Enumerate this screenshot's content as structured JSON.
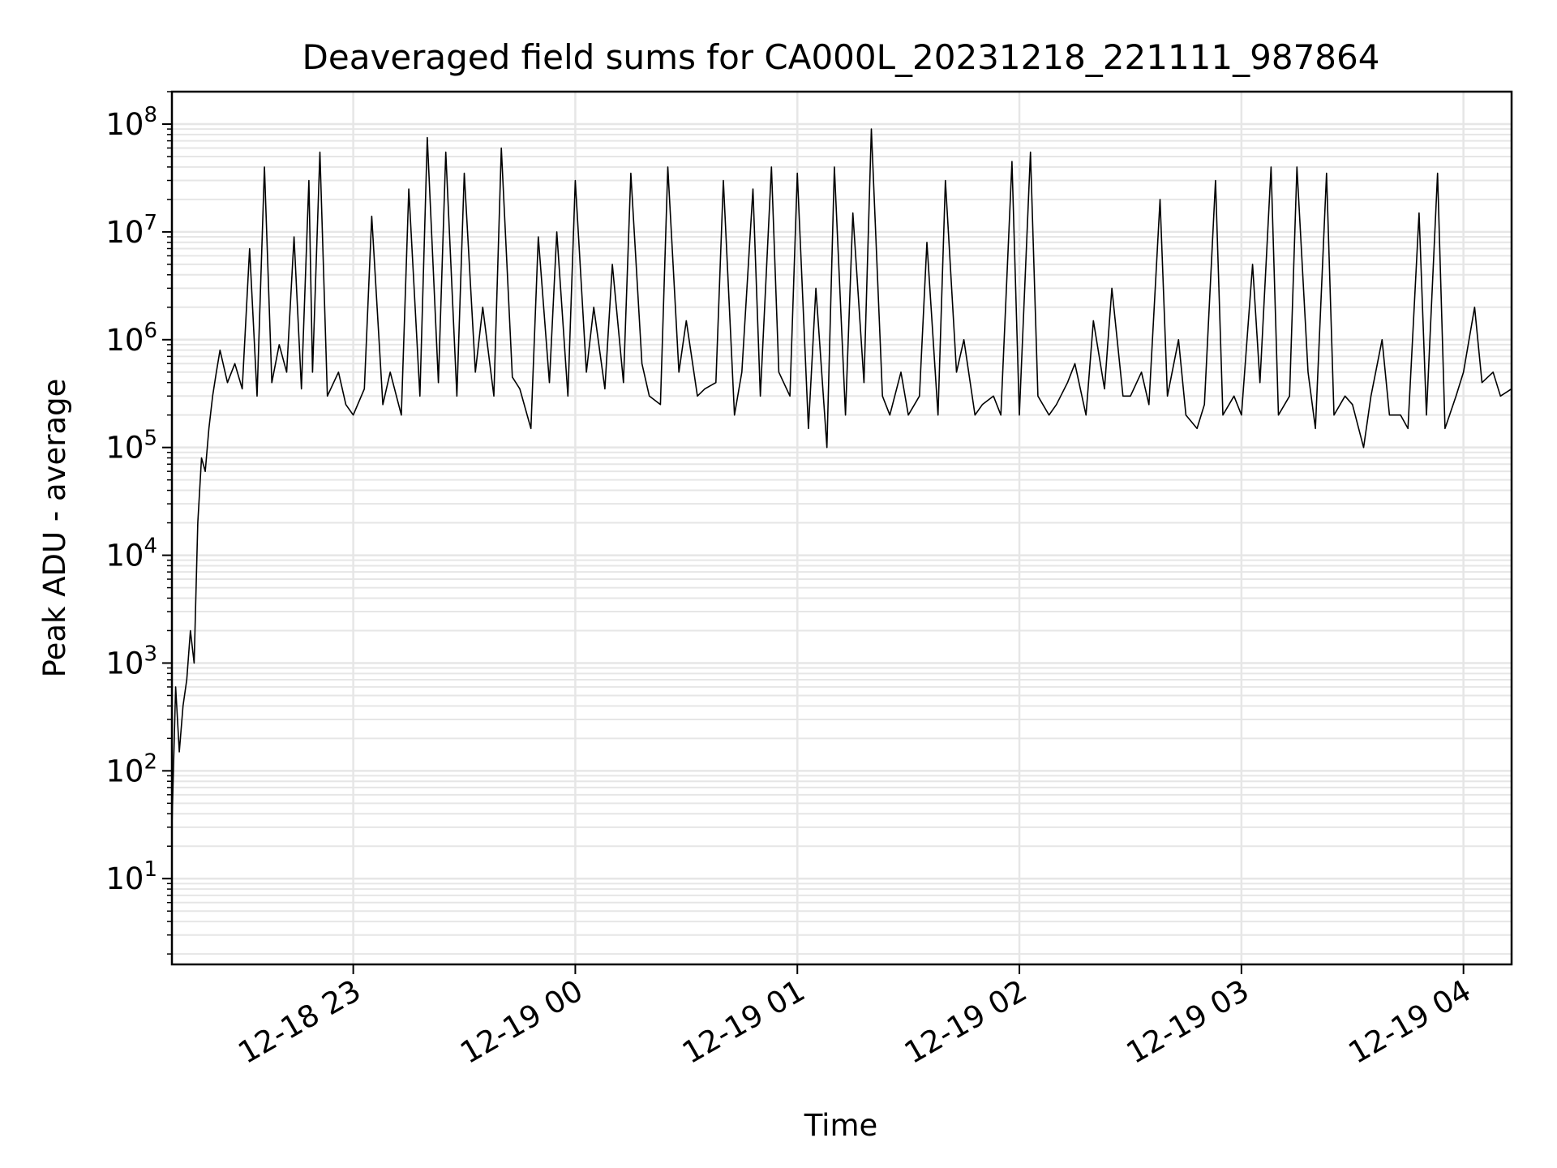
{
  "chart_data": {
    "type": "line",
    "title": "Deaveraged field sums for CA000L_20231218_221111_987864",
    "xlabel": "Time",
    "ylabel": "Peak ADU - average",
    "yscale": "log",
    "ylim": [
      1.6,
      200000000
    ],
    "xlim": [
      "2023-12-18 22:11",
      "2023-12-19 04:13"
    ],
    "grid": true,
    "line_color": "#000000",
    "grid_color": "#e6e6e6",
    "x_tick_labels": [
      "12-18 23",
      "12-19 00",
      "12-19 01",
      "12-19 02",
      "12-19 03",
      "12-19 04"
    ],
    "x_tick_times": [
      "2023-12-18 23:00",
      "2023-12-19 00:00",
      "2023-12-19 01:00",
      "2023-12-19 02:00",
      "2023-12-19 03:00",
      "2023-12-19 04:00"
    ],
    "y_tick_labels": [
      {
        "base": "10",
        "exp": "1",
        "value": 10
      },
      {
        "base": "10",
        "exp": "2",
        "value": 100
      },
      {
        "base": "10",
        "exp": "3",
        "value": 1000
      },
      {
        "base": "10",
        "exp": "4",
        "value": 10000
      },
      {
        "base": "10",
        "exp": "5",
        "value": 100000
      },
      {
        "base": "10",
        "exp": "6",
        "value": 1000000
      },
      {
        "base": "10",
        "exp": "7",
        "value": 10000000
      },
      {
        "base": "10",
        "exp": "8",
        "value": 100000000
      }
    ],
    "series": [
      {
        "x": [
          "2023-12-18 22:11",
          "2023-12-18 22:11",
          "2023-12-18 22:12",
          "2023-12-18 22:13",
          "2023-12-18 22:14",
          "2023-12-18 22:15",
          "2023-12-18 22:16",
          "2023-12-18 22:17",
          "2023-12-18 22:18",
          "2023-12-18 22:19",
          "2023-12-18 22:20",
          "2023-12-18 22:21",
          "2023-12-18 22:22",
          "2023-12-18 22:23",
          "2023-12-18 22:24",
          "2023-12-18 22:26",
          "2023-12-18 22:28",
          "2023-12-18 22:30",
          "2023-12-18 22:32",
          "2023-12-18 22:34",
          "2023-12-18 22:36",
          "2023-12-18 22:38",
          "2023-12-18 22:40",
          "2023-12-18 22:42",
          "2023-12-18 22:44",
          "2023-12-18 22:46",
          "2023-12-18 22:48",
          "2023-12-18 22:49",
          "2023-12-18 22:51",
          "2023-12-18 22:53",
          "2023-12-18 22:56",
          "2023-12-18 22:58",
          "2023-12-18 23:00",
          "2023-12-18 23:03",
          "2023-12-18 23:05",
          "2023-12-18 23:08",
          "2023-12-18 23:10",
          "2023-12-18 23:13",
          "2023-12-18 23:15",
          "2023-12-18 23:18",
          "2023-12-18 23:20",
          "2023-12-18 23:23",
          "2023-12-18 23:25",
          "2023-12-18 23:28",
          "2023-12-18 23:30",
          "2023-12-18 23:33",
          "2023-12-18 23:35",
          "2023-12-18 23:38",
          "2023-12-18 23:40",
          "2023-12-18 23:43",
          "2023-12-18 23:45",
          "2023-12-18 23:48",
          "2023-12-18 23:50",
          "2023-12-18 23:53",
          "2023-12-18 23:55",
          "2023-12-18 23:58",
          "2023-12-19 00:00",
          "2023-12-19 00:03",
          "2023-12-19 00:05",
          "2023-12-19 00:08",
          "2023-12-19 00:10",
          "2023-12-19 00:13",
          "2023-12-19 00:15",
          "2023-12-19 00:18",
          "2023-12-19 00:20",
          "2023-12-19 00:23",
          "2023-12-19 00:25",
          "2023-12-19 00:28",
          "2023-12-19 00:30",
          "2023-12-19 00:33",
          "2023-12-19 00:35",
          "2023-12-19 00:38",
          "2023-12-19 00:40",
          "2023-12-19 00:43",
          "2023-12-19 00:45",
          "2023-12-19 00:48",
          "2023-12-19 00:50",
          "2023-12-19 00:53",
          "2023-12-19 00:55",
          "2023-12-19 00:58",
          "2023-12-19 01:00",
          "2023-12-19 01:03",
          "2023-12-19 01:05",
          "2023-12-19 01:08",
          "2023-12-19 01:10",
          "2023-12-19 01:13",
          "2023-12-19 01:15",
          "2023-12-19 01:18",
          "2023-12-19 01:20",
          "2023-12-19 01:23",
          "2023-12-19 01:25",
          "2023-12-19 01:28",
          "2023-12-19 01:30",
          "2023-12-19 01:33",
          "2023-12-19 01:35",
          "2023-12-19 01:38",
          "2023-12-19 01:40",
          "2023-12-19 01:43",
          "2023-12-19 01:45",
          "2023-12-19 01:48",
          "2023-12-19 01:50",
          "2023-12-19 01:53",
          "2023-12-19 01:55",
          "2023-12-19 01:58",
          "2023-12-19 02:00",
          "2023-12-19 02:03",
          "2023-12-19 02:05",
          "2023-12-19 02:08",
          "2023-12-19 02:10",
          "2023-12-19 02:13",
          "2023-12-19 02:15",
          "2023-12-19 02:18",
          "2023-12-19 02:20",
          "2023-12-19 02:23",
          "2023-12-19 02:25",
          "2023-12-19 02:28",
          "2023-12-19 02:30",
          "2023-12-19 02:33",
          "2023-12-19 02:35",
          "2023-12-19 02:38",
          "2023-12-19 02:40",
          "2023-12-19 02:43",
          "2023-12-19 02:45",
          "2023-12-19 02:48",
          "2023-12-19 02:50",
          "2023-12-19 02:53",
          "2023-12-19 02:55",
          "2023-12-19 02:58",
          "2023-12-19 03:00",
          "2023-12-19 03:03",
          "2023-12-19 03:05",
          "2023-12-19 03:08",
          "2023-12-19 03:10",
          "2023-12-19 03:13",
          "2023-12-19 03:15",
          "2023-12-19 03:18",
          "2023-12-19 03:20",
          "2023-12-19 03:23",
          "2023-12-19 03:25",
          "2023-12-19 03:28",
          "2023-12-19 03:30",
          "2023-12-19 03:33",
          "2023-12-19 03:35",
          "2023-12-19 03:38",
          "2023-12-19 03:40",
          "2023-12-19 03:43",
          "2023-12-19 03:45",
          "2023-12-19 03:48",
          "2023-12-19 03:50",
          "2023-12-19 03:53",
          "2023-12-19 03:55",
          "2023-12-19 03:58",
          "2023-12-19 04:00",
          "2023-12-19 04:03",
          "2023-12-19 04:05",
          "2023-12-19 04:08",
          "2023-12-19 04:10",
          "2023-12-19 04:13"
        ],
        "y": [
          3,
          30,
          600,
          150,
          400,
          700,
          2000,
          1000,
          20000,
          80000,
          60000,
          150000,
          300000,
          500000,
          800000,
          400000,
          600000,
          350000,
          7000000,
          300000,
          40000000,
          400000,
          900000,
          500000,
          9000000,
          350000,
          30000000,
          500000,
          55000000,
          300000,
          500000,
          250000,
          200000,
          350000,
          14000000,
          250000,
          500000,
          200000,
          25000000,
          300000,
          75000000,
          400000,
          55000000,
          300000,
          35000000,
          500000,
          2000000,
          300000,
          60000000,
          450000,
          350000,
          150000,
          9000000,
          400000,
          10000000,
          300000,
          30000000,
          500000,
          2000000,
          350000,
          5000000,
          400000,
          35000000,
          600000,
          300000,
          250000,
          40000000,
          500000,
          1500000,
          300000,
          350000,
          400000,
          30000000,
          200000,
          500000,
          25000000,
          300000,
          40000000,
          500000,
          300000,
          35000000,
          150000,
          3000000,
          100000,
          40000000,
          200000,
          15000000,
          400000,
          90000000,
          300000,
          200000,
          500000,
          200000,
          300000,
          8000000,
          200000,
          30000000,
          500000,
          1000000,
          200000,
          250000,
          300000,
          200000,
          45000000,
          200000,
          55000000,
          300000,
          200000,
          250000,
          400000,
          600000,
          200000,
          1500000,
          350000,
          3000000,
          300000,
          300000,
          500000,
          250000,
          20000000,
          300000,
          1000000,
          200000,
          150000,
          250000,
          30000000,
          200000,
          300000,
          200000,
          5000000,
          400000,
          40000000,
          200000,
          300000,
          40000000,
          500000,
          150000,
          35000000,
          200000,
          300000,
          250000,
          100000,
          300000,
          1000000,
          200000,
          200000,
          150000,
          15000000,
          200000,
          35000000,
          150000,
          300000,
          500000,
          2000000,
          400000,
          500000,
          300000,
          350000
        ]
      }
    ]
  }
}
